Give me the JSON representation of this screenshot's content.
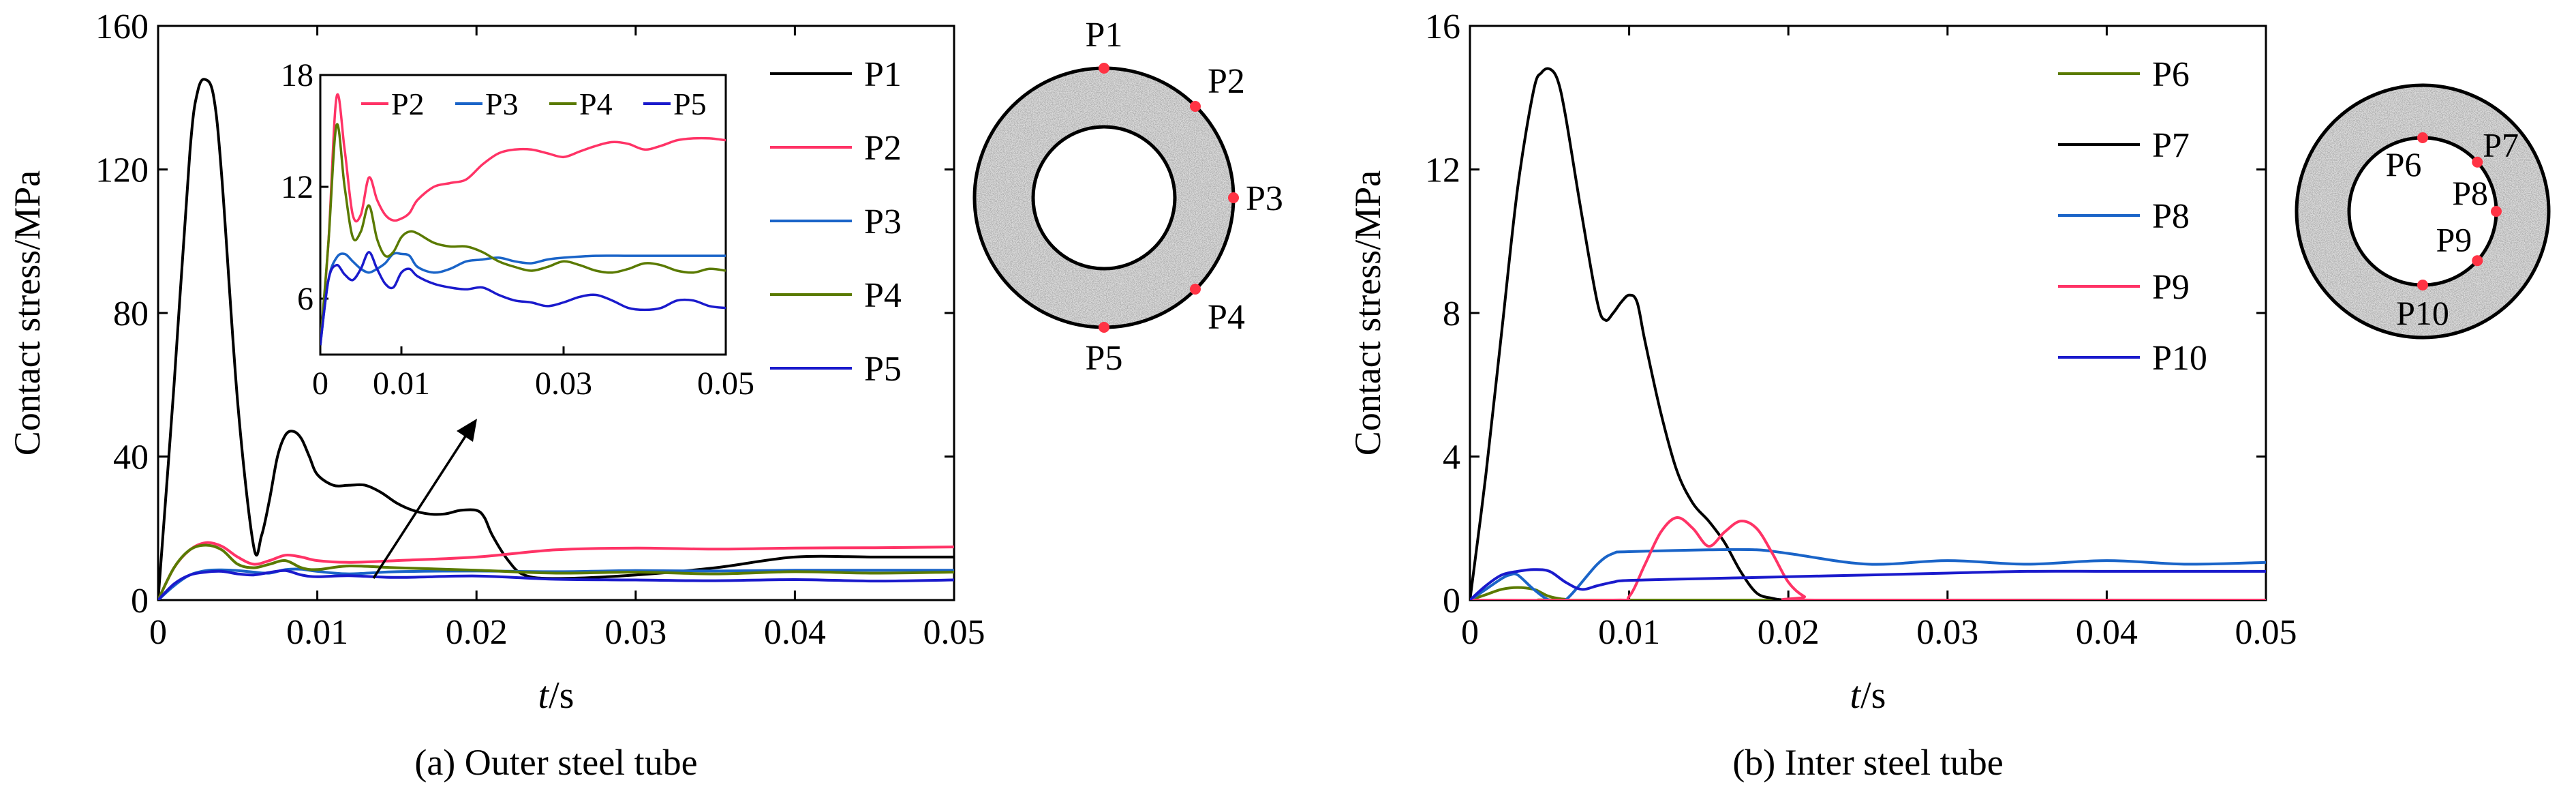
{
  "chart_data": [
    {
      "panel": "a",
      "type": "line",
      "caption": "(a) Outer steel tube",
      "xlabel_italic": "t",
      "xlabel_unit": "/s",
      "ylabel": "Contact stress/MPa",
      "xlim": [
        0,
        0.05
      ],
      "ylim": [
        0,
        160
      ],
      "xticks": [
        0,
        0.01,
        0.02,
        0.03,
        0.04,
        0.05
      ],
      "xtick_labels": [
        "0",
        "0.01",
        "0.02",
        "0.03",
        "0.04",
        "0.05"
      ],
      "yticks": [
        0,
        40,
        80,
        120,
        160
      ],
      "ytick_labels": [
        "0",
        "40",
        "80",
        "120",
        "160"
      ],
      "grid": false,
      "legend_position": "right",
      "series": [
        {
          "name": "P1",
          "color": "#000000",
          "x": [
            0,
            0.001,
            0.002,
            0.0025,
            0.003,
            0.0035,
            0.004,
            0.005,
            0.006,
            0.0065,
            0.007,
            0.0075,
            0.008,
            0.0085,
            0.009,
            0.0095,
            0.01,
            0.011,
            0.012,
            0.013,
            0.014,
            0.015,
            0.016,
            0.017,
            0.018,
            0.019,
            0.02,
            0.0205,
            0.021,
            0.022,
            0.023,
            0.025,
            0.03,
            0.035,
            0.04,
            0.045,
            0.05
          ],
          "y": [
            0,
            60,
            125,
            142,
            145,
            140,
            118,
            55,
            15,
            18,
            28,
            40,
            46,
            47,
            45,
            40,
            35,
            32,
            32,
            32,
            30,
            27,
            25,
            24,
            24,
            25,
            25,
            23,
            18,
            11,
            7,
            6,
            7,
            9,
            12,
            12,
            12
          ]
        },
        {
          "name": "P2",
          "color": "#ff3366",
          "x": [
            0,
            0.001,
            0.002,
            0.003,
            0.004,
            0.005,
            0.006,
            0.007,
            0.008,
            0.009,
            0.01,
            0.012,
            0.015,
            0.02,
            0.025,
            0.03,
            0.035,
            0.04,
            0.045,
            0.05
          ],
          "y": [
            0,
            9,
            14,
            16,
            15,
            12,
            10,
            11,
            12.5,
            12,
            11,
            10.5,
            11,
            12,
            14,
            14.5,
            14.2,
            14.5,
            14.6,
            14.8
          ]
        },
        {
          "name": "P3",
          "color": "#1a64c8",
          "x": [
            0,
            0.001,
            0.002,
            0.003,
            0.004,
            0.005,
            0.006,
            0.007,
            0.008,
            0.009,
            0.01,
            0.012,
            0.015,
            0.02,
            0.025,
            0.03,
            0.035,
            0.04,
            0.045,
            0.05
          ],
          "y": [
            0,
            4,
            7,
            8.2,
            8.4,
            8.2,
            7.8,
            7.5,
            8.5,
            8.6,
            8,
            7.3,
            7.9,
            8.1,
            7.9,
            8.2,
            8.1,
            8.3,
            8.3,
            8.3
          ]
        },
        {
          "name": "P4",
          "color": "#5a7a00",
          "x": [
            0,
            0.001,
            0.002,
            0.003,
            0.004,
            0.005,
            0.006,
            0.007,
            0.008,
            0.009,
            0.01,
            0.012,
            0.015,
            0.02,
            0.025,
            0.03,
            0.035,
            0.04,
            0.045,
            0.05
          ],
          "y": [
            0,
            9,
            14,
            15.3,
            14,
            10,
            9,
            10,
            11,
            9,
            8.5,
            9.5,
            9,
            8.3,
            7.5,
            7.8,
            7.3,
            7.9,
            7.5,
            7.8
          ]
        },
        {
          "name": "P5",
          "color": "#1a1acc",
          "x": [
            0,
            0.001,
            0.002,
            0.003,
            0.004,
            0.005,
            0.006,
            0.007,
            0.008,
            0.009,
            0.01,
            0.012,
            0.015,
            0.02,
            0.025,
            0.03,
            0.035,
            0.04,
            0.045,
            0.05
          ],
          "y": [
            0,
            4.5,
            7,
            7.8,
            8,
            7.3,
            7,
            7.7,
            8.2,
            7,
            6.5,
            6.8,
            6.3,
            6.7,
            5.8,
            5.6,
            5.4,
            5.7,
            5.3,
            5.6
          ]
        }
      ],
      "inset": {
        "xlim": [
          0,
          0.05
        ],
        "ylim": [
          3,
          18
        ],
        "xticks": [
          0,
          0.01,
          0.03,
          0.05
        ],
        "xtick_labels": [
          "0",
          "0.01",
          "0.03",
          "0.05"
        ],
        "yticks": [
          6,
          12,
          18
        ],
        "ytick_labels": [
          "6",
          "12",
          "18"
        ],
        "legend": [
          "P2",
          "P3",
          "P4",
          "P5"
        ],
        "series": [
          {
            "name": "P2",
            "color": "#ff3366",
            "x": [
              0,
              0.001,
              0.002,
              0.003,
              0.004,
              0.005,
              0.006,
              0.007,
              0.008,
              0.009,
              0.01,
              0.011,
              0.012,
              0.014,
              0.016,
              0.018,
              0.02,
              0.022,
              0.024,
              0.026,
              0.028,
              0.03,
              0.032,
              0.034,
              0.036,
              0.038,
              0.04,
              0.042,
              0.044,
              0.046,
              0.048,
              0.05
            ],
            "y": [
              3.5,
              9,
              16.8,
              14,
              10.5,
              10.5,
              12.5,
              11.3,
              10.5,
              10.2,
              10.3,
              10.6,
              11.3,
              12,
              12.2,
              12.4,
              13.2,
              13.8,
              14,
              14,
              13.8,
              13.6,
              13.9,
              14.2,
              14.4,
              14.3,
              14,
              14.2,
              14.5,
              14.6,
              14.6,
              14.5
            ]
          },
          {
            "name": "P3",
            "color": "#1a64c8",
            "x": [
              0,
              0.001,
              0.002,
              0.003,
              0.004,
              0.005,
              0.006,
              0.007,
              0.008,
              0.009,
              0.01,
              0.011,
              0.012,
              0.014,
              0.016,
              0.018,
              0.02,
              0.022,
              0.024,
              0.026,
              0.028,
              0.03,
              0.034,
              0.038,
              0.042,
              0.046,
              0.05
            ],
            "y": [
              3.5,
              7,
              8.2,
              8.4,
              8,
              7.6,
              7.4,
              7.6,
              7.9,
              8.4,
              8.4,
              8.3,
              7.7,
              7.4,
              7.6,
              8,
              8.1,
              8.2,
              8,
              7.9,
              8.1,
              8.2,
              8.3,
              8.3,
              8.3,
              8.3,
              8.3
            ]
          },
          {
            "name": "P4",
            "color": "#5a7a00",
            "x": [
              0,
              0.001,
              0.002,
              0.003,
              0.004,
              0.005,
              0.006,
              0.007,
              0.008,
              0.009,
              0.01,
              0.011,
              0.012,
              0.014,
              0.016,
              0.018,
              0.02,
              0.022,
              0.024,
              0.026,
              0.028,
              0.03,
              0.032,
              0.034,
              0.036,
              0.038,
              0.04,
              0.042,
              0.044,
              0.046,
              0.048,
              0.05
            ],
            "y": [
              3.5,
              9,
              15.3,
              12,
              9.3,
              9.6,
              11,
              9.2,
              8.3,
              8.5,
              9.3,
              9.6,
              9.5,
              9,
              8.8,
              8.8,
              8.5,
              8,
              7.7,
              7.5,
              7.7,
              8,
              7.8,
              7.5,
              7.4,
              7.6,
              7.9,
              7.8,
              7.5,
              7.4,
              7.6,
              7.5
            ]
          },
          {
            "name": "P5",
            "color": "#1a1acc",
            "x": [
              0,
              0.001,
              0.002,
              0.003,
              0.004,
              0.005,
              0.006,
              0.007,
              0.008,
              0.009,
              0.01,
              0.011,
              0.012,
              0.014,
              0.016,
              0.018,
              0.02,
              0.022,
              0.024,
              0.026,
              0.028,
              0.03,
              0.032,
              0.034,
              0.036,
              0.038,
              0.04,
              0.042,
              0.044,
              0.046,
              0.048,
              0.05
            ],
            "y": [
              3.5,
              7,
              7.8,
              7.3,
              7,
              7.6,
              8.5,
              7.6,
              6.8,
              6.6,
              7.4,
              7.6,
              7.2,
              6.8,
              6.6,
              6.5,
              6.6,
              6.2,
              5.9,
              5.8,
              5.6,
              5.8,
              6.1,
              6.2,
              5.9,
              5.5,
              5.4,
              5.5,
              5.9,
              5.9,
              5.6,
              5.5
            ]
          }
        ]
      },
      "cross_section_labels": [
        "P1",
        "P2",
        "P3",
        "P4",
        "P5"
      ]
    },
    {
      "panel": "b",
      "type": "line",
      "caption": "(b) Inter steel tube",
      "xlabel_italic": "t",
      "xlabel_unit": "/s",
      "ylabel": "Contact stress/MPa",
      "xlim": [
        0,
        0.05
      ],
      "ylim": [
        0,
        16
      ],
      "xticks": [
        0,
        0.01,
        0.02,
        0.03,
        0.04,
        0.05
      ],
      "xtick_labels": [
        "0",
        "0.01",
        "0.02",
        "0.03",
        "0.04",
        "0.05"
      ],
      "yticks": [
        0,
        4,
        8,
        12,
        16
      ],
      "ytick_labels": [
        "0",
        "4",
        "8",
        "12",
        "16"
      ],
      "grid": false,
      "legend_position": "right",
      "series": [
        {
          "name": "P6",
          "color": "#5a7a00",
          "x": [
            0,
            0.001,
            0.002,
            0.003,
            0.004,
            0.0045,
            0.005,
            0.006,
            0.008,
            0.05
          ],
          "y": [
            0,
            0.15,
            0.3,
            0.35,
            0.3,
            0.2,
            0.1,
            0.02,
            0,
            0
          ]
        },
        {
          "name": "P7",
          "color": "#000000",
          "x": [
            0,
            0.001,
            0.002,
            0.003,
            0.004,
            0.0045,
            0.005,
            0.0055,
            0.006,
            0.007,
            0.008,
            0.0085,
            0.009,
            0.0095,
            0.01,
            0.0105,
            0.011,
            0.012,
            0.013,
            0.014,
            0.015,
            0.016,
            0.017,
            0.018,
            0.019,
            0.02,
            0.022,
            0.05
          ],
          "y": [
            0,
            3.5,
            7.5,
            11.5,
            14.2,
            14.7,
            14.8,
            14.5,
            13.5,
            10.8,
            8.3,
            7.8,
            8,
            8.3,
            8.5,
            8.3,
            7.2,
            5.2,
            3.6,
            2.7,
            2.2,
            1.6,
            0.8,
            0.2,
            0.05,
            0,
            0,
            0
          ]
        },
        {
          "name": "P8",
          "color": "#1a64c8",
          "x": [
            0,
            0.001,
            0.002,
            0.0025,
            0.003,
            0.004,
            0.005,
            0.006,
            0.008,
            0.009,
            0.01,
            0.015,
            0.018,
            0.02,
            0.025,
            0.03,
            0.035,
            0.04,
            0.045,
            0.05
          ],
          "y": [
            0,
            0.3,
            0.6,
            0.7,
            0.7,
            0.3,
            0,
            0,
            1,
            1.3,
            1.35,
            1.4,
            1.4,
            1.3,
            1,
            1.1,
            1,
            1.1,
            1,
            1.05
          ]
        },
        {
          "name": "P9",
          "color": "#ff3366",
          "x": [
            0,
            0.009,
            0.01,
            0.011,
            0.012,
            0.013,
            0.014,
            0.015,
            0.016,
            0.017,
            0.018,
            0.019,
            0.02,
            0.021,
            0.022,
            0.05
          ],
          "y": [
            0,
            0,
            0.1,
            1,
            1.9,
            2.3,
            2.0,
            1.5,
            1.9,
            2.2,
            2.0,
            1.3,
            0.5,
            0.1,
            0,
            0
          ]
        },
        {
          "name": "P10",
          "color": "#1a1acc",
          "x": [
            0,
            0.001,
            0.002,
            0.003,
            0.004,
            0.005,
            0.006,
            0.007,
            0.008,
            0.009,
            0.01,
            0.015,
            0.02,
            0.025,
            0.03,
            0.035,
            0.04,
            0.045,
            0.05
          ],
          "y": [
            0,
            0.4,
            0.7,
            0.8,
            0.85,
            0.8,
            0.5,
            0.3,
            0.4,
            0.5,
            0.55,
            0.6,
            0.65,
            0.7,
            0.75,
            0.8,
            0.8,
            0.8,
            0.8
          ]
        }
      ],
      "cross_section_labels": [
        "P6",
        "P7",
        "P8",
        "P9",
        "P10"
      ]
    }
  ]
}
